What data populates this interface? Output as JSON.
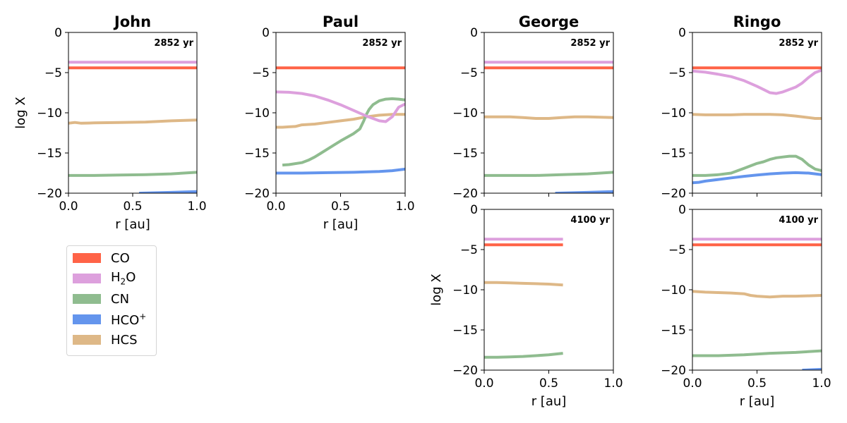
{
  "chart_data": [
    {
      "type": "line",
      "title": "John",
      "annotation": "2852 yr",
      "xlabel": "r [au]",
      "ylabel": "log X",
      "xlim": [
        0,
        1
      ],
      "ylim": [
        -20,
        0
      ],
      "xticks": [
        "0.0",
        "0.5",
        "1.0"
      ],
      "yticks": [
        "0",
        "−5",
        "−10",
        "−15",
        "−20"
      ],
      "series": [
        {
          "name": "CO",
          "x": [
            0,
            1
          ],
          "y": [
            -4.4,
            -4.4
          ]
        },
        {
          "name": "H2O",
          "x": [
            0,
            1
          ],
          "y": [
            -3.7,
            -3.7
          ]
        },
        {
          "name": "CN",
          "x": [
            0,
            0.2,
            0.4,
            0.6,
            0.8,
            1.0
          ],
          "y": [
            -17.8,
            -17.8,
            -17.75,
            -17.7,
            -17.6,
            -17.4
          ]
        },
        {
          "name": "HCO+",
          "x": [
            0.55,
            0.8,
            1.0
          ],
          "y": [
            -20.0,
            -19.9,
            -19.8
          ]
        },
        {
          "name": "HCS",
          "x": [
            0,
            0.05,
            0.1,
            0.2,
            0.4,
            0.6,
            0.8,
            1.0
          ],
          "y": [
            -11.3,
            -11.2,
            -11.3,
            -11.25,
            -11.2,
            -11.15,
            -11.0,
            -10.9
          ]
        }
      ]
    },
    {
      "type": "line",
      "title": "Paul",
      "annotation": "2852 yr",
      "xlabel": "r [au]",
      "ylabel": "",
      "xlim": [
        0,
        1
      ],
      "ylim": [
        -20,
        0
      ],
      "xticks": [
        "0.0",
        "0.5",
        "1.0"
      ],
      "yticks": [
        "0",
        "−5",
        "−10",
        "−15",
        "−20"
      ],
      "series": [
        {
          "name": "CO",
          "x": [
            0,
            1
          ],
          "y": [
            -4.4,
            -4.4
          ]
        },
        {
          "name": "H2O",
          "x": [
            0,
            0.1,
            0.2,
            0.3,
            0.4,
            0.5,
            0.6,
            0.7,
            0.8,
            0.85,
            0.9,
            0.95,
            1.0
          ],
          "y": [
            -7.4,
            -7.45,
            -7.6,
            -7.9,
            -8.4,
            -9.0,
            -9.7,
            -10.4,
            -11.0,
            -11.1,
            -10.5,
            -9.3,
            -8.9
          ]
        },
        {
          "name": "CN",
          "x": [
            0.05,
            0.1,
            0.2,
            0.25,
            0.3,
            0.35,
            0.4,
            0.45,
            0.5,
            0.6,
            0.65,
            0.68,
            0.7,
            0.72,
            0.75,
            0.8,
            0.85,
            0.9,
            0.95,
            1.0
          ],
          "y": [
            -16.5,
            -16.45,
            -16.2,
            -15.9,
            -15.5,
            -15.0,
            -14.5,
            -14.0,
            -13.5,
            -12.6,
            -12.0,
            -11.0,
            -10.2,
            -9.6,
            -9.0,
            -8.5,
            -8.3,
            -8.25,
            -8.3,
            -8.4
          ]
        },
        {
          "name": "HCO+",
          "x": [
            0,
            0.2,
            0.4,
            0.6,
            0.8,
            0.9,
            1.0
          ],
          "y": [
            -17.5,
            -17.5,
            -17.45,
            -17.4,
            -17.3,
            -17.2,
            -17.0
          ]
        },
        {
          "name": "HCS",
          "x": [
            0,
            0.05,
            0.1,
            0.15,
            0.2,
            0.3,
            0.4,
            0.5,
            0.6,
            0.7,
            0.8,
            0.9,
            1.0
          ],
          "y": [
            -11.8,
            -11.8,
            -11.75,
            -11.7,
            -11.5,
            -11.4,
            -11.2,
            -11.0,
            -10.8,
            -10.5,
            -10.3,
            -10.2,
            -10.2
          ]
        }
      ]
    },
    {
      "type": "line",
      "title": "George",
      "annotation": "2852 yr",
      "xlabel": "",
      "ylabel": "",
      "xlim": [
        0,
        1
      ],
      "ylim": [
        -20,
        0
      ],
      "xticks": [],
      "yticks": [
        "0",
        "−5",
        "−10",
        "−15",
        "−20"
      ],
      "series": [
        {
          "name": "CO",
          "x": [
            0,
            1
          ],
          "y": [
            -4.4,
            -4.4
          ]
        },
        {
          "name": "H2O",
          "x": [
            0,
            1
          ],
          "y": [
            -3.7,
            -3.7
          ]
        },
        {
          "name": "CN",
          "x": [
            0,
            0.2,
            0.4,
            0.6,
            0.8,
            1.0
          ],
          "y": [
            -17.8,
            -17.8,
            -17.8,
            -17.7,
            -17.6,
            -17.4
          ]
        },
        {
          "name": "HCO+",
          "x": [
            0.55,
            0.8,
            1.0
          ],
          "y": [
            -20.0,
            -19.9,
            -19.8
          ]
        },
        {
          "name": "HCS",
          "x": [
            0,
            0.1,
            0.2,
            0.3,
            0.4,
            0.5,
            0.6,
            0.7,
            0.8,
            0.9,
            1.0
          ],
          "y": [
            -10.5,
            -10.5,
            -10.5,
            -10.6,
            -10.7,
            -10.7,
            -10.6,
            -10.5,
            -10.5,
            -10.55,
            -10.6
          ]
        }
      ]
    },
    {
      "type": "line",
      "title": "Ringo",
      "annotation": "2852 yr",
      "xlabel": "",
      "ylabel": "",
      "xlim": [
        0,
        1
      ],
      "ylim": [
        -20,
        0
      ],
      "xticks": [],
      "yticks": [
        "0",
        "−5",
        "−10",
        "−15",
        "−20"
      ],
      "series": [
        {
          "name": "CO",
          "x": [
            0,
            1
          ],
          "y": [
            -4.4,
            -4.4
          ]
        },
        {
          "name": "H2O",
          "x": [
            0,
            0.1,
            0.2,
            0.3,
            0.4,
            0.5,
            0.55,
            0.6,
            0.65,
            0.7,
            0.8,
            0.85,
            0.9,
            0.95,
            1.0
          ],
          "y": [
            -4.8,
            -4.95,
            -5.2,
            -5.5,
            -6.0,
            -6.7,
            -7.1,
            -7.5,
            -7.6,
            -7.4,
            -6.8,
            -6.3,
            -5.6,
            -5.0,
            -4.7
          ]
        },
        {
          "name": "CN",
          "x": [
            0,
            0.1,
            0.2,
            0.3,
            0.35,
            0.4,
            0.45,
            0.5,
            0.55,
            0.6,
            0.65,
            0.7,
            0.75,
            0.8,
            0.85,
            0.9,
            0.95,
            1.0
          ],
          "y": [
            -17.8,
            -17.8,
            -17.7,
            -17.5,
            -17.2,
            -16.9,
            -16.6,
            -16.3,
            -16.1,
            -15.8,
            -15.6,
            -15.5,
            -15.4,
            -15.4,
            -15.8,
            -16.5,
            -17.0,
            -17.2
          ]
        },
        {
          "name": "HCO+",
          "x": [
            0,
            0.05,
            0.1,
            0.2,
            0.3,
            0.4,
            0.5,
            0.6,
            0.7,
            0.8,
            0.9,
            1.0
          ],
          "y": [
            -18.7,
            -18.65,
            -18.5,
            -18.3,
            -18.1,
            -17.9,
            -17.75,
            -17.6,
            -17.5,
            -17.45,
            -17.5,
            -17.7
          ]
        },
        {
          "name": "HCS",
          "x": [
            0,
            0.1,
            0.2,
            0.3,
            0.4,
            0.5,
            0.6,
            0.7,
            0.8,
            0.9,
            0.95,
            1.0
          ],
          "y": [
            -10.2,
            -10.25,
            -10.25,
            -10.25,
            -10.2,
            -10.2,
            -10.2,
            -10.25,
            -10.4,
            -10.6,
            -10.7,
            -10.7
          ]
        }
      ]
    },
    {
      "type": "line",
      "title": "",
      "annotation": "4100 yr",
      "xlabel": "r [au]",
      "ylabel": "log X",
      "xlim": [
        0,
        1
      ],
      "ylim": [
        -20,
        0
      ],
      "xticks": [
        "0.0",
        "0.5",
        "1.0"
      ],
      "yticks": [
        "0",
        "−5",
        "−10",
        "−15",
        "−20"
      ],
      "series": [
        {
          "name": "CO",
          "x": [
            0,
            0.61
          ],
          "y": [
            -4.4,
            -4.4
          ]
        },
        {
          "name": "H2O",
          "x": [
            0,
            0.61
          ],
          "y": [
            -3.7,
            -3.7
          ]
        },
        {
          "name": "CN",
          "x": [
            0,
            0.1,
            0.2,
            0.3,
            0.4,
            0.5,
            0.61
          ],
          "y": [
            -18.4,
            -18.4,
            -18.35,
            -18.3,
            -18.2,
            -18.1,
            -17.9
          ]
        },
        {
          "name": "HCO+",
          "x": [],
          "y": []
        },
        {
          "name": "HCS",
          "x": [
            0,
            0.1,
            0.2,
            0.3,
            0.4,
            0.5,
            0.61
          ],
          "y": [
            -9.1,
            -9.1,
            -9.15,
            -9.2,
            -9.25,
            -9.3,
            -9.4
          ]
        }
      ]
    },
    {
      "type": "line",
      "title": "",
      "annotation": "4100 yr",
      "xlabel": "r [au]",
      "ylabel": "",
      "xlim": [
        0,
        1
      ],
      "ylim": [
        -20,
        0
      ],
      "xticks": [
        "0.0",
        "0.5",
        "1.0"
      ],
      "yticks": [
        "0",
        "−5",
        "−10",
        "−15",
        "−20"
      ],
      "series": [
        {
          "name": "CO",
          "x": [
            0,
            1
          ],
          "y": [
            -4.4,
            -4.4
          ]
        },
        {
          "name": "H2O",
          "x": [
            0,
            1
          ],
          "y": [
            -3.7,
            -3.7
          ]
        },
        {
          "name": "CN",
          "x": [
            0,
            0.2,
            0.4,
            0.6,
            0.8,
            1.0
          ],
          "y": [
            -18.2,
            -18.2,
            -18.1,
            -17.9,
            -17.8,
            -17.6
          ]
        },
        {
          "name": "HCO+",
          "x": [
            0.85,
            1.0
          ],
          "y": [
            -20.0,
            -19.9
          ]
        },
        {
          "name": "HCS",
          "x": [
            0,
            0.1,
            0.2,
            0.3,
            0.4,
            0.45,
            0.5,
            0.6,
            0.7,
            0.8,
            0.9,
            1.0
          ],
          "y": [
            -10.2,
            -10.3,
            -10.35,
            -10.4,
            -10.5,
            -10.7,
            -10.8,
            -10.9,
            -10.8,
            -10.8,
            -10.75,
            -10.7
          ]
        }
      ]
    }
  ],
  "legend": {
    "placement": "left, below first row",
    "items": [
      {
        "series": "CO",
        "label": "CO",
        "color": "#ff6347"
      },
      {
        "series": "H2O",
        "label": "H",
        "sub": "2",
        "tail": "O",
        "color": "#dda0dd"
      },
      {
        "series": "CN",
        "label": "CN",
        "color": "#8fbc8f"
      },
      {
        "series": "HCO+",
        "label": "HCO",
        "sup": "+",
        "color": "#6495ed"
      },
      {
        "series": "HCS",
        "label": "HCS",
        "color": "#deb887"
      }
    ]
  },
  "colors": {
    "CO": "#ff6347",
    "H2O": "#dda0dd",
    "CN": "#8fbc8f",
    "HCO+": "#6495ed",
    "HCS": "#deb887"
  }
}
